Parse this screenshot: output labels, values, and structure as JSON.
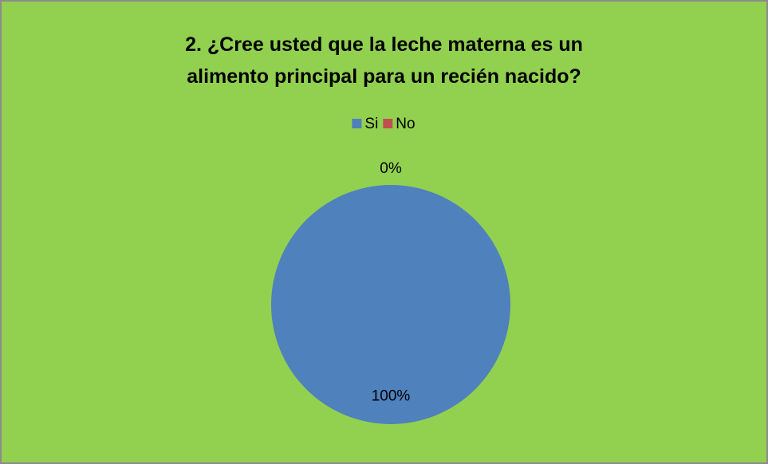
{
  "chart_data": {
    "type": "pie",
    "title": "2. ¿Cree usted que la leche materna es un alimento principal para un recién nacido?",
    "categories": [
      "Si",
      "No"
    ],
    "values": [
      100,
      0
    ],
    "value_labels": [
      "100%",
      "0%"
    ],
    "colors": [
      "#4f81bd",
      "#c0504d"
    ],
    "legend": "top"
  }
}
